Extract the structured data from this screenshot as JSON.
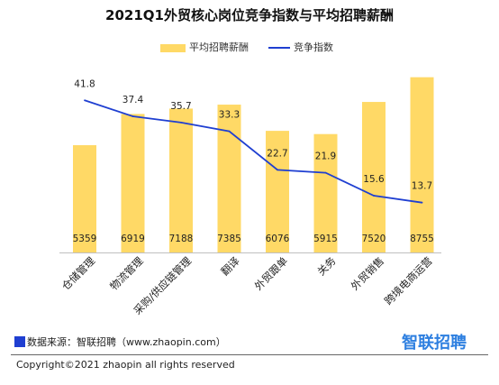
{
  "chart_data": {
    "type": "bar",
    "title": "2021Q1外贸核心岗位竞争指数与平均招聘薪酬",
    "categories": [
      "仓储管理",
      "物流管理",
      "采购/供应链管理",
      "翻译",
      "外贸跟单",
      "关务",
      "外贸销售",
      "跨境电商运营"
    ],
    "series": [
      {
        "name": "平均招聘薪酬",
        "type": "bar",
        "values": [
          5359,
          6919,
          7188,
          7385,
          6076,
          5915,
          7520,
          8755
        ],
        "color": "#FFD966"
      },
      {
        "name": "竞争指数",
        "type": "line",
        "values": [
          41.8,
          37.4,
          35.7,
          33.3,
          22.7,
          21.9,
          15.6,
          13.7
        ],
        "color": "#1F3FD1"
      }
    ],
    "bar_ylim": [
      0,
      10000
    ],
    "line_ylim": [
      0,
      55
    ],
    "legend_position": "top",
    "grid": false
  },
  "footer": {
    "source": "数据来源：智联招聘（www.zhaopin.com）",
    "brand": "智联招聘",
    "copyright": "Copyright©2021 zhaopin all rights reserved"
  },
  "colors": {
    "brand": "#2D7FE0",
    "source_marker": "#1F3FD1"
  }
}
